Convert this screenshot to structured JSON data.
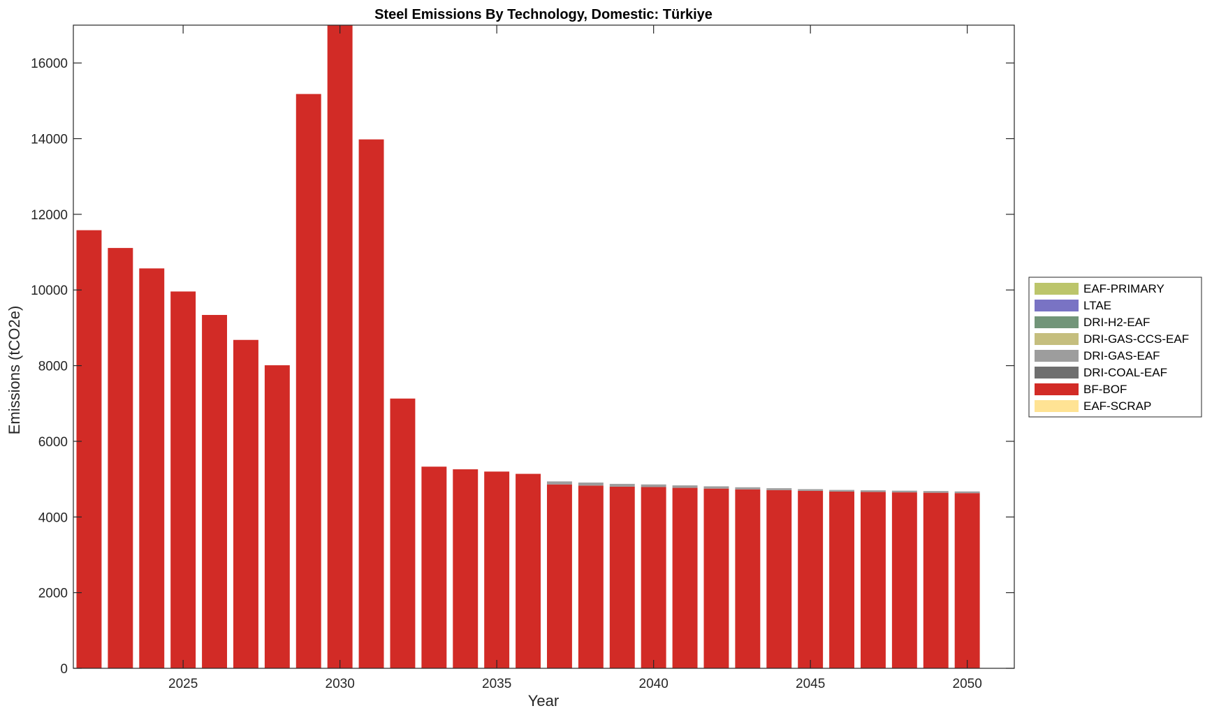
{
  "chart_data": {
    "type": "bar",
    "stacked": true,
    "title": "Steel Emissions By Technology, Domestic: Türkiye",
    "xlabel": "Year",
    "ylabel": "Emissions (tCO2e)",
    "xlim": [
      2021.5,
      2051.5
    ],
    "ylim": [
      0,
      17000
    ],
    "xticks": [
      2025,
      2030,
      2035,
      2040,
      2045,
      2050
    ],
    "yticks": [
      0,
      2000,
      4000,
      6000,
      8000,
      10000,
      12000,
      14000,
      16000
    ],
    "grid": false,
    "legend_position": "outside-right",
    "x": [
      2022,
      2023,
      2024,
      2025,
      2026,
      2027,
      2028,
      2029,
      2030,
      2031,
      2032,
      2033,
      2034,
      2035,
      2036,
      2037,
      2038,
      2039,
      2040,
      2041,
      2042,
      2043,
      2044,
      2045,
      2046,
      2047,
      2048,
      2049,
      2050
    ],
    "series": [
      {
        "name": "EAF-SCRAP",
        "color": "#FFE394",
        "values": [
          0,
          0,
          0,
          0,
          0,
          0,
          0,
          0,
          0,
          0,
          0,
          0,
          0,
          0,
          0,
          0,
          0,
          0,
          0,
          0,
          0,
          0,
          0,
          0,
          0,
          0,
          0,
          0,
          0
        ]
      },
      {
        "name": "BF-BOF",
        "color": "#D22B26",
        "values": [
          11580,
          11110,
          10570,
          9960,
          9340,
          8680,
          8010,
          15180,
          17000,
          13980,
          7130,
          5330,
          5260,
          5200,
          5140,
          4860,
          4830,
          4800,
          4790,
          4770,
          4750,
          4730,
          4710,
          4690,
          4670,
          4660,
          4650,
          4640,
          4630
        ]
      },
      {
        "name": "DRI-COAL-EAF",
        "color": "#6F6F6F",
        "values": [
          0,
          0,
          0,
          0,
          0,
          0,
          0,
          0,
          0,
          0,
          0,
          0,
          0,
          0,
          0,
          0,
          0,
          0,
          0,
          0,
          0,
          0,
          0,
          0,
          0,
          0,
          0,
          0,
          0
        ]
      },
      {
        "name": "DRI-GAS-EAF",
        "color": "#9D9D9D",
        "values": [
          0,
          0,
          0,
          0,
          0,
          0,
          0,
          0,
          0,
          0,
          0,
          0,
          0,
          0,
          0,
          80,
          80,
          75,
          70,
          65,
          60,
          55,
          50,
          45,
          45,
          45,
          45,
          45,
          45
        ]
      },
      {
        "name": "DRI-GAS-CCS-EAF",
        "color": "#C5BE7E",
        "values": [
          0,
          0,
          0,
          0,
          0,
          0,
          0,
          0,
          0,
          0,
          0,
          0,
          0,
          0,
          0,
          0,
          0,
          0,
          0,
          0,
          0,
          0,
          0,
          0,
          0,
          0,
          0,
          0,
          0
        ]
      },
      {
        "name": "DRI-H2-EAF",
        "color": "#729579",
        "values": [
          0,
          0,
          0,
          0,
          0,
          0,
          0,
          0,
          0,
          0,
          0,
          0,
          0,
          0,
          0,
          0,
          0,
          0,
          0,
          0,
          0,
          0,
          0,
          0,
          0,
          0,
          0,
          0,
          0
        ]
      },
      {
        "name": "LTAE",
        "color": "#7973C4",
        "values": [
          0,
          0,
          0,
          0,
          0,
          0,
          0,
          0,
          0,
          0,
          0,
          0,
          0,
          0,
          0,
          0,
          0,
          0,
          0,
          0,
          0,
          0,
          0,
          0,
          0,
          0,
          0,
          0,
          0
        ]
      },
      {
        "name": "EAF-PRIMARY",
        "color": "#BCC56B",
        "values": [
          0,
          0,
          0,
          0,
          0,
          0,
          0,
          0,
          0,
          0,
          0,
          0,
          0,
          0,
          0,
          0,
          0,
          0,
          0,
          0,
          0,
          0,
          0,
          0,
          0,
          0,
          0,
          0,
          0
        ]
      }
    ],
    "legend_order": [
      "EAF-PRIMARY",
      "LTAE",
      "DRI-H2-EAF",
      "DRI-GAS-CCS-EAF",
      "DRI-GAS-EAF",
      "DRI-COAL-EAF",
      "BF-BOF",
      "EAF-SCRAP"
    ]
  }
}
